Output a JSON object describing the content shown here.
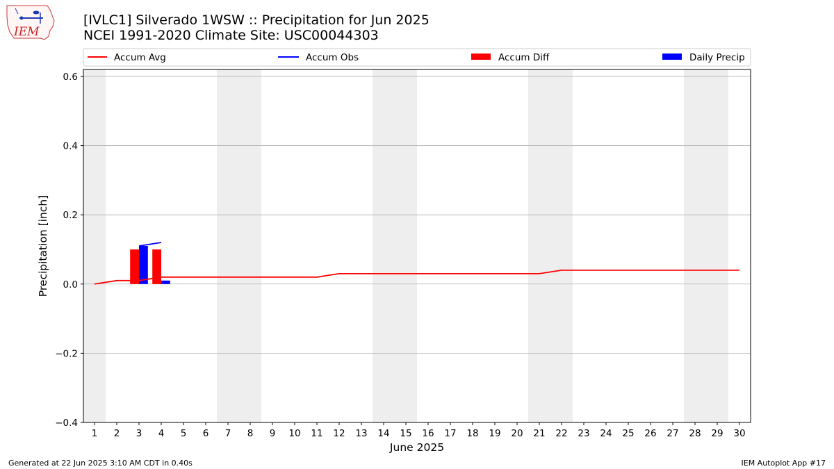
{
  "header": {
    "logo_text": "IEM",
    "title_line1": "[IVLC1] Silverado 1WSW :: Precipitation for Jun 2025",
    "title_line2": "NCEI 1991-2020 Climate Site: USC00044303"
  },
  "footer": {
    "generated": "Generated at 22 Jun 2025 3:10 AM CDT in 0.40s",
    "app": "IEM Autoplot App #17"
  },
  "colors": {
    "avg": "#ff0000",
    "obs": "#0000ff",
    "diff": "#ff0000",
    "daily": "#0000ff",
    "weekend_band": "#eeeeee",
    "grid": "#b0b0b0"
  },
  "chart_data": {
    "type": "bar",
    "title": "[IVLC1] Silverado 1WSW :: Precipitation for Jun 2025",
    "subtitle": "NCEI 1991-2020 Climate Site: USC00044303",
    "xlabel": "June 2025",
    "ylabel": "Precipitation [inch]",
    "xlim": [
      0.5,
      30.5
    ],
    "ylim": [
      -0.4,
      0.62
    ],
    "yticks": [
      -0.4,
      -0.2,
      0.0,
      0.2,
      0.4,
      0.6
    ],
    "ytick_labels": [
      "−0.4",
      "−0.2",
      "0.0",
      "0.2",
      "0.4",
      "0.6"
    ],
    "xticks": [
      1,
      2,
      3,
      4,
      5,
      6,
      7,
      8,
      9,
      10,
      11,
      12,
      13,
      14,
      15,
      16,
      17,
      18,
      19,
      20,
      21,
      22,
      23,
      24,
      25,
      26,
      27,
      28,
      29,
      30
    ],
    "grid": "y",
    "legend_position": "top",
    "legend": [
      "Accum Avg",
      "Accum Obs",
      "Accum Diff",
      "Daily Precip"
    ],
    "weekend_bands": [
      [
        0.5,
        1.5
      ],
      [
        6.5,
        8.5
      ],
      [
        13.5,
        15.5
      ],
      [
        20.5,
        22.5
      ],
      [
        27.5,
        29.5
      ]
    ],
    "series": [
      {
        "name": "Accum Avg",
        "kind": "line",
        "x": [
          1,
          2,
          3,
          4,
          5,
          6,
          7,
          8,
          9,
          10,
          11,
          12,
          13,
          14,
          15,
          16,
          17,
          18,
          19,
          20,
          21,
          22,
          23,
          24,
          25,
          26,
          27,
          28,
          29,
          30
        ],
        "values": [
          0.0,
          0.01,
          0.01,
          0.02,
          0.02,
          0.02,
          0.02,
          0.02,
          0.02,
          0.02,
          0.02,
          0.03,
          0.03,
          0.03,
          0.03,
          0.03,
          0.03,
          0.03,
          0.03,
          0.03,
          0.03,
          0.04,
          0.04,
          0.04,
          0.04,
          0.04,
          0.04,
          0.04,
          0.04,
          0.04
        ]
      },
      {
        "name": "Accum Obs",
        "kind": "line",
        "x": [
          3,
          4
        ],
        "values": [
          0.11,
          0.12
        ]
      },
      {
        "name": "Accum Diff",
        "kind": "bar",
        "x": [
          3,
          4
        ],
        "values": [
          0.1,
          0.1
        ]
      },
      {
        "name": "Daily Precip",
        "kind": "bar",
        "x": [
          3,
          4
        ],
        "values": [
          0.11,
          0.01
        ]
      }
    ]
  }
}
